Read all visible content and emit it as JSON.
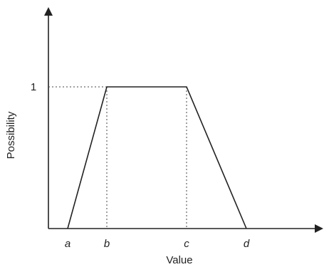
{
  "chart_data": {
    "type": "line",
    "xlabel": "Value",
    "ylabel": "Possibility",
    "x_tick_labels": [
      "a",
      "b",
      "c",
      "d"
    ],
    "y_tick_labels": [
      "1"
    ],
    "series": [
      {
        "points": [
          {
            "x": "a",
            "y": 0
          },
          {
            "x": "b",
            "y": 1
          },
          {
            "x": "c",
            "y": 1
          },
          {
            "x": "d",
            "y": 0
          }
        ]
      }
    ],
    "guides": "dotted lines from b and c down to the x-axis, and from y = 1 across to the y-axis",
    "grid": false
  }
}
